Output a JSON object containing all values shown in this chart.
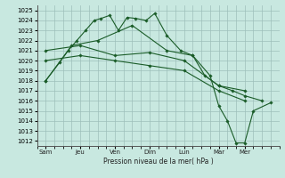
{
  "xlabel": "Pression niveau de la mer( hPa )",
  "x_labels": [
    "Sam",
    "Jeu",
    "Ven",
    "Dim",
    "Lun",
    "Mar",
    "Mer"
  ],
  "x_tick_pos": [
    0,
    2,
    4,
    6,
    8,
    10,
    11.5
  ],
  "ylim": [
    1011.5,
    1025.5
  ],
  "xlim": [
    -0.1,
    13.5
  ],
  "yticks": [
    1012,
    1013,
    1014,
    1015,
    1016,
    1017,
    1018,
    1019,
    1020,
    1021,
    1022,
    1023,
    1024,
    1025
  ],
  "bg_color": "#c8e8e0",
  "grid_color": "#9dbfba",
  "line_color": "#1a5c28",
  "series": [
    {
      "x": [
        0,
        0.8,
        1.3,
        1.8,
        2.3,
        2.8,
        3.2,
        3.7,
        4.2,
        4.7,
        5.2,
        5.8,
        6.3,
        7.0,
        7.8,
        8.5,
        9.2,
        10.0,
        10.8,
        11.5,
        12.5
      ],
      "y": [
        1018.0,
        1019.8,
        1021.0,
        1022.0,
        1023.0,
        1024.0,
        1024.2,
        1024.5,
        1023.0,
        1024.3,
        1024.2,
        1024.0,
        1024.7,
        1022.5,
        1021.0,
        1020.5,
        1018.5,
        1017.5,
        1017.0,
        1016.5,
        1016.0
      ]
    },
    {
      "x": [
        0,
        2,
        4,
        6,
        8,
        10,
        11.5
      ],
      "y": [
        1021.0,
        1021.5,
        1020.5,
        1020.8,
        1020.0,
        1017.5,
        1017.0
      ]
    },
    {
      "x": [
        0,
        2,
        4,
        6,
        8,
        10,
        11.5
      ],
      "y": [
        1020.0,
        1020.5,
        1020.0,
        1019.5,
        1019.0,
        1017.0,
        1016.0
      ]
    },
    {
      "x": [
        0,
        1.5,
        3.0,
        5.0,
        7.0,
        8.5,
        9.5,
        10.0,
        10.5,
        11.0,
        11.5,
        12.0,
        13.0
      ],
      "y": [
        1018.0,
        1021.5,
        1022.0,
        1023.5,
        1021.0,
        1020.5,
        1018.5,
        1015.5,
        1014.0,
        1011.8,
        1011.8,
        1015.0,
        1015.8
      ]
    }
  ]
}
